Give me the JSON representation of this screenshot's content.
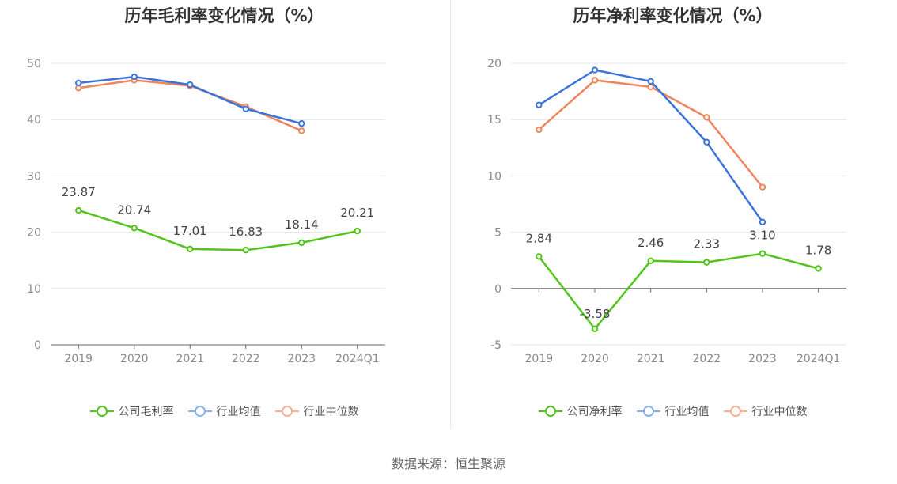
{
  "source": "数据来源：恒生聚源",
  "chart_data": [
    {
      "type": "line",
      "title": "历年毛利率变化情况（%）",
      "categories": [
        "2019",
        "2020",
        "2021",
        "2022",
        "2023",
        "2024Q1"
      ],
      "yticks": [
        "0",
        "10",
        "20",
        "30",
        "40",
        "50"
      ],
      "ylim": [
        0,
        50
      ],
      "grid": true,
      "legend_position": "bottom",
      "series": [
        {
          "name": "公司毛利率",
          "color": "#52c41a",
          "values": [
            23.87,
            20.74,
            17.01,
            16.83,
            18.14,
            20.21
          ],
          "labels": [
            "23.87",
            "20.74",
            "17.01",
            "16.83",
            "18.14",
            "20.21"
          ]
        },
        {
          "name": "行业均值",
          "color": "#3a74db",
          "legend_color": "#8ab0ee",
          "values": [
            46.5,
            47.6,
            46.2,
            41.9,
            39.3,
            null
          ]
        },
        {
          "name": "行业中位数",
          "color": "#f0845a",
          "legend_color": "#f5b196",
          "values": [
            45.6,
            47.0,
            46.0,
            42.3,
            38.0,
            null
          ]
        }
      ]
    },
    {
      "type": "line",
      "title": "历年净利率变化情况（%）",
      "categories": [
        "2019",
        "2020",
        "2021",
        "2022",
        "2023",
        "2024Q1"
      ],
      "yticks": [
        "-5",
        "0",
        "5",
        "10",
        "15",
        "20"
      ],
      "ylim": [
        -5,
        20
      ],
      "grid": true,
      "legend_position": "bottom",
      "series": [
        {
          "name": "公司净利率",
          "color": "#52c41a",
          "values": [
            2.84,
            -3.58,
            2.46,
            2.33,
            3.1,
            1.78
          ],
          "labels": [
            "2.84",
            "-3.58",
            "2.46",
            "2.33",
            "3.10",
            "1.78"
          ]
        },
        {
          "name": "行业均值",
          "color": "#3a74db",
          "legend_color": "#8ab0ee",
          "values": [
            16.3,
            19.4,
            18.4,
            13.0,
            5.9,
            null
          ]
        },
        {
          "name": "行业中位数",
          "color": "#f0845a",
          "legend_color": "#f5b196",
          "values": [
            14.1,
            18.5,
            17.9,
            15.2,
            9.0,
            null
          ]
        }
      ]
    }
  ]
}
